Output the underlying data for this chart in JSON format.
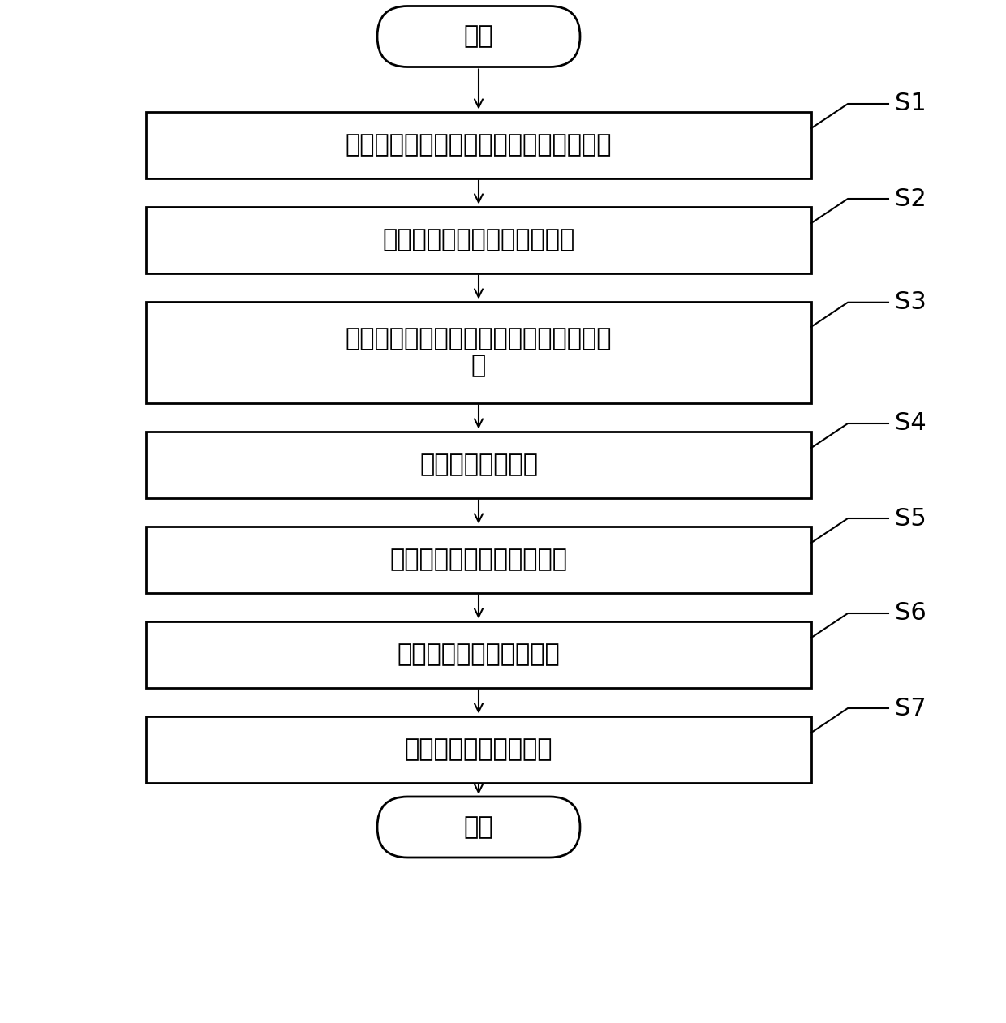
{
  "background_color": "#ffffff",
  "start_label": "开始",
  "end_label": "结束",
  "steps": [
    {
      "id": "S1",
      "label": "订阅相机发布的话题和里程计发布的话题",
      "multiline": false
    },
    {
      "id": "S2",
      "label": "得到无真实尺度运动轨迹数据",
      "multiline": false
    },
    {
      "id": "S3",
      "label": "提取相机位移量，提取机器人里程计位移\n量",
      "multiline": true
    },
    {
      "id": "S4",
      "label": "得到相机尺度因子",
      "multiline": false
    },
    {
      "id": "S5",
      "label": "得到真实尺度运动轨迹数据",
      "multiline": false
    },
    {
      "id": "S6",
      "label": "得到世界坐标系点云数据",
      "multiline": false
    },
    {
      "id": "S7",
      "label": "得到关于障碍物的地图",
      "multiline": false
    }
  ],
  "box_color": "#ffffff",
  "box_edge_color": "#000000",
  "arrow_color": "#000000",
  "text_color": "#000000",
  "tag_color": "#000000",
  "font_size": 22,
  "tag_font_size": 22,
  "lw": 2.0
}
